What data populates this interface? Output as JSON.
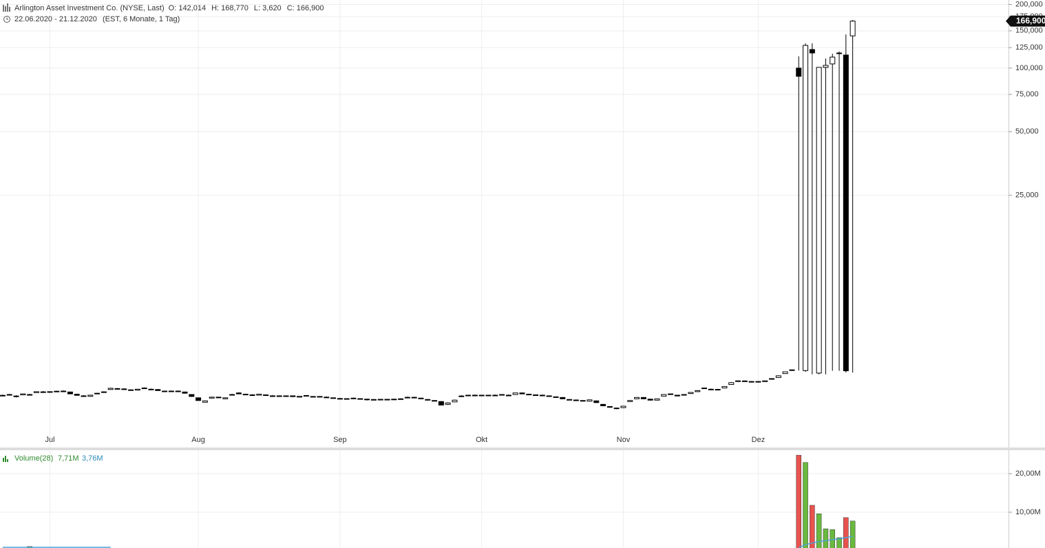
{
  "header": {
    "title": "Arlington Asset Investment Co. (NYSE, Last)",
    "ohlc": [
      "O: 142,014",
      "H: 168,770",
      "L: 3,620",
      "C: 166,900"
    ],
    "range": "22.06.2020 - 21.12.2020",
    "info": "(EST, 6 Monate, 1 Tag)"
  },
  "chart_data": [
    {
      "type": "candlestick",
      "log_scale": true,
      "grid": true,
      "up_color": "#ffffff",
      "down_color": "#000000",
      "ylim": [
        1600,
        210000
      ],
      "yticks": [
        {
          "value": 25000,
          "label": "25,000"
        },
        {
          "value": 50000,
          "label": "50,000"
        },
        {
          "value": 75000,
          "label": "75,000"
        },
        {
          "value": 100000,
          "label": "100,000"
        },
        {
          "value": 125000,
          "label": "125,000"
        },
        {
          "value": 150000,
          "label": "150,000"
        },
        {
          "value": 175000,
          "label": "175,000"
        },
        {
          "value": 200000,
          "label": "200,000"
        }
      ],
      "xlim": [
        -0.4,
        149.1
      ],
      "xticks": [
        {
          "value": 7,
          "label": "Jul"
        },
        {
          "value": 29,
          "label": "Aug"
        },
        {
          "value": 50,
          "label": "Sep"
        },
        {
          "value": 71,
          "label": "Okt"
        },
        {
          "value": 92,
          "label": "Nov"
        },
        {
          "value": 112,
          "label": "Dez"
        }
      ],
      "last_price": {
        "value": 166900,
        "label": "166,900"
      },
      "candles": [
        [
          2820,
          2850,
          2800,
          2825
        ],
        [
          2840,
          2870,
          2820,
          2850
        ],
        [
          2790,
          2830,
          2760,
          2805
        ],
        [
          2840,
          2880,
          2830,
          2870
        ],
        [
          2850,
          2870,
          2830,
          2850
        ],
        [
          2910,
          2950,
          2900,
          2940
        ],
        [
          2930,
          2960,
          2910,
          2935
        ],
        [
          2920,
          2950,
          2910,
          2940
        ],
        [
          2950,
          2970,
          2940,
          2955
        ],
        [
          2960,
          2980,
          2930,
          2955
        ],
        [
          2930,
          2940,
          2860,
          2870
        ],
        [
          2860,
          2870,
          2810,
          2825
        ],
        [
          2810,
          2830,
          2790,
          2805
        ],
        [
          2795,
          2840,
          2780,
          2830
        ],
        [
          2880,
          2900,
          2870,
          2890
        ],
        [
          2920,
          2950,
          2910,
          2935
        ],
        [
          3010,
          3070,
          3000,
          3050
        ],
        [
          3040,
          3060,
          3020,
          3040
        ],
        [
          3030,
          3050,
          3000,
          3015
        ],
        [
          2980,
          3010,
          2970,
          3000
        ],
        [
          2990,
          3030,
          2980,
          3020
        ],
        [
          3060,
          3080,
          3040,
          3060
        ],
        [
          3020,
          3040,
          3000,
          3015
        ],
        [
          3010,
          3020,
          2970,
          2975
        ],
        [
          2950,
          2970,
          2940,
          2960
        ],
        [
          2960,
          2975,
          2945,
          2955
        ],
        [
          2955,
          2980,
          2940,
          2960
        ],
        [
          2930,
          2940,
          2880,
          2890
        ],
        [
          2850,
          2860,
          2780,
          2790
        ],
        [
          2750,
          2760,
          2660,
          2670
        ],
        [
          2620,
          2670,
          2610,
          2660
        ],
        [
          2740,
          2780,
          2730,
          2770
        ],
        [
          2760,
          2780,
          2750,
          2770
        ],
        [
          2720,
          2760,
          2710,
          2750
        ],
        [
          2840,
          2870,
          2820,
          2850
        ],
        [
          2900,
          2920,
          2860,
          2870
        ],
        [
          2860,
          2870,
          2840,
          2850
        ],
        [
          2830,
          2860,
          2820,
          2840
        ],
        [
          2830,
          2870,
          2820,
          2860
        ],
        [
          2840,
          2850,
          2820,
          2830
        ],
        [
          2810,
          2830,
          2790,
          2805
        ],
        [
          2800,
          2820,
          2780,
          2810
        ],
        [
          2810,
          2820,
          2790,
          2800
        ],
        [
          2810,
          2820,
          2780,
          2785
        ],
        [
          2770,
          2800,
          2760,
          2795
        ],
        [
          2820,
          2830,
          2790,
          2800
        ],
        [
          2790,
          2800,
          2780,
          2785
        ],
        [
          2790,
          2800,
          2770,
          2785
        ],
        [
          2770,
          2790,
          2760,
          2765
        ],
        [
          2750,
          2760,
          2730,
          2745
        ],
        [
          2730,
          2745,
          2710,
          2720
        ],
        [
          2720,
          2730,
          2700,
          2725
        ],
        [
          2740,
          2755,
          2730,
          2740
        ],
        [
          2725,
          2735,
          2710,
          2720
        ],
        [
          2690,
          2720,
          2670,
          2710
        ],
        [
          2700,
          2715,
          2690,
          2700
        ],
        [
          2700,
          2710,
          2690,
          2705
        ],
        [
          2705,
          2715,
          2690,
          2700
        ],
        [
          2700,
          2720,
          2690,
          2710
        ],
        [
          2715,
          2735,
          2705,
          2720
        ],
        [
          2750,
          2785,
          2740,
          2765
        ],
        [
          2765,
          2780,
          2750,
          2760
        ],
        [
          2740,
          2750,
          2715,
          2720
        ],
        [
          2700,
          2710,
          2670,
          2680
        ],
        [
          2670,
          2680,
          2650,
          2660
        ],
        [
          2640,
          2650,
          2530,
          2540
        ],
        [
          2560,
          2620,
          2540,
          2600
        ],
        [
          2630,
          2700,
          2620,
          2680
        ],
        [
          2800,
          2830,
          2790,
          2805
        ],
        [
          2820,
          2840,
          2810,
          2830
        ],
        [
          2830,
          2850,
          2810,
          2825
        ],
        [
          2810,
          2840,
          2800,
          2830
        ],
        [
          2830,
          2840,
          2810,
          2825
        ],
        [
          2825,
          2850,
          2810,
          2830
        ],
        [
          2840,
          2860,
          2830,
          2850
        ],
        [
          2830,
          2850,
          2810,
          2825
        ],
        [
          2850,
          2905,
          2840,
          2900
        ],
        [
          2900,
          2910,
          2860,
          2870
        ],
        [
          2860,
          2875,
          2840,
          2850
        ],
        [
          2840,
          2850,
          2820,
          2830
        ],
        [
          2830,
          2850,
          2815,
          2825
        ],
        [
          2810,
          2820,
          2790,
          2800
        ],
        [
          2780,
          2790,
          2760,
          2765
        ],
        [
          2760,
          2770,
          2710,
          2720
        ],
        [
          2700,
          2710,
          2680,
          2685
        ],
        [
          2685,
          2700,
          2670,
          2680
        ],
        [
          2670,
          2680,
          2650,
          2660
        ],
        [
          2650,
          2700,
          2640,
          2690
        ],
        [
          2660,
          2670,
          2600,
          2610
        ],
        [
          2560,
          2570,
          2510,
          2520
        ],
        [
          2500,
          2510,
          2470,
          2480
        ],
        [
          2460,
          2470,
          2430,
          2445
        ],
        [
          2470,
          2520,
          2460,
          2510
        ],
        [
          2640,
          2680,
          2630,
          2670
        ],
        [
          2720,
          2770,
          2710,
          2760
        ],
        [
          2760,
          2770,
          2710,
          2720
        ],
        [
          2710,
          2720,
          2670,
          2680
        ],
        [
          2680,
          2730,
          2670,
          2720
        ],
        [
          2800,
          2860,
          2790,
          2850
        ],
        [
          2860,
          2880,
          2850,
          2870
        ],
        [
          2830,
          2840,
          2795,
          2805
        ],
        [
          2830,
          2860,
          2820,
          2850
        ],
        [
          2880,
          2920,
          2870,
          2915
        ],
        [
          2940,
          2985,
          2930,
          2975
        ],
        [
          3060,
          3070,
          3030,
          3040
        ],
        [
          3020,
          3040,
          3005,
          3015
        ],
        [
          3010,
          3030,
          3000,
          3015
        ],
        [
          3060,
          3120,
          3050,
          3110
        ],
        [
          3180,
          3260,
          3170,
          3245
        ],
        [
          3290,
          3320,
          3280,
          3308
        ],
        [
          3300,
          3320,
          3290,
          3305
        ],
        [
          3260,
          3300,
          3250,
          3285
        ],
        [
          3280,
          3300,
          3270,
          3285
        ],
        [
          3280,
          3320,
          3270,
          3310
        ],
        [
          3370,
          3400,
          3360,
          3390
        ],
        [
          3430,
          3510,
          3420,
          3495
        ],
        [
          3580,
          3660,
          3570,
          3650
        ],
        [
          3720,
          3740,
          3710,
          3730
        ],
        [
          100000,
          113600,
          3700,
          91400
        ],
        [
          3700,
          131000,
          3650,
          128000
        ],
        [
          122400,
          131000,
          3550,
          117900
        ],
        [
          3600,
          101000,
          3550,
          100800
        ],
        [
          100800,
          111000,
          3550,
          103000
        ],
        [
          104600,
          117000,
          3690,
          112700
        ],
        [
          117000,
          119700,
          3690,
          117900
        ],
        [
          115300,
          144300,
          3620,
          3690
        ],
        [
          142014,
          168770,
          3620,
          166900
        ]
      ]
    },
    {
      "type": "bar",
      "grid": true,
      "up_color": "#6ab93f",
      "down_color": "#e8534e",
      "ma_color": "#4aa3d8",
      "legend": [
        "Volume(28)",
        "7,71M",
        "3,76M"
      ],
      "ylim": [
        0,
        25.9
      ],
      "yticks": [
        {
          "value": 10,
          "label": "10,00M"
        },
        {
          "value": 20,
          "label": "20,00M"
        }
      ],
      "values": [
        0.5,
        0.5,
        0.5,
        0.5,
        1.1,
        0.5,
        0.5,
        0.5,
        0.5,
        0.5,
        0.5,
        0.5,
        0.5,
        0.5,
        0.5,
        0.5,
        0.5,
        0.5,
        0.5,
        0.5,
        0.5,
        0.5,
        0.5,
        0.5,
        0.5,
        0.5,
        0.5,
        0.5,
        0.5,
        0.5,
        0.5,
        0.5,
        0.5,
        0.5,
        0.5,
        0.5,
        0.5,
        0.5,
        0.5,
        0.5,
        0.5,
        0.5,
        0.5,
        0.5,
        0.5,
        0.5,
        0.5,
        0.5,
        0.5,
        0.5,
        0.5,
        0.5,
        0.5,
        0.5,
        0.5,
        0.5,
        0.5,
        0.5,
        0.5,
        0.5,
        0.5,
        0.5,
        0.5,
        0.5,
        0.5,
        0.5,
        0.5,
        0.5,
        0.5,
        0.5,
        0.5,
        0.5,
        0.5,
        0.5,
        0.5,
        0.5,
        0.5,
        0.5,
        0.5,
        0.5,
        0.5,
        0.5,
        0.5,
        0.5,
        0.5,
        0.5,
        0.5,
        0.5,
        0.5,
        0.5,
        0.5,
        0.5,
        0.5,
        0.5,
        0.5,
        0.5,
        0.5,
        0.5,
        0.5,
        0.5,
        0.5,
        0.5,
        0.5,
        0.5,
        0.5,
        0.5,
        0.5,
        0.5,
        0.5,
        0.5,
        0.5,
        0.5,
        0.5,
        0.5,
        0.5,
        0.5,
        0.5,
        0.5,
        24.8,
        22.9,
        11.8,
        9.6,
        5.7,
        5.5,
        3.4,
        8.6,
        7.71
      ],
      "ma": [
        0.9,
        0.9,
        0.9,
        0.9,
        0.9,
        0.9,
        0.9,
        0.9,
        0.9,
        0.9,
        0.9,
        0.9,
        0.9,
        0.9,
        0.9,
        0.9,
        0.9,
        null,
        null,
        null,
        null,
        null,
        null,
        null,
        null,
        null,
        null,
        null,
        null,
        null,
        null,
        null,
        null,
        null,
        null,
        null,
        null,
        null,
        null,
        null,
        null,
        null,
        null,
        null,
        null,
        null,
        null,
        null,
        null,
        null,
        null,
        null,
        null,
        null,
        null,
        null,
        null,
        null,
        null,
        null,
        null,
        null,
        null,
        null,
        null,
        null,
        null,
        null,
        null,
        null,
        null,
        null,
        null,
        null,
        null,
        null,
        null,
        null,
        null,
        null,
        null,
        null,
        null,
        null,
        null,
        null,
        null,
        null,
        null,
        null,
        null,
        null,
        null,
        null,
        null,
        null,
        null,
        null,
        null,
        null,
        null,
        null,
        null,
        null,
        null,
        null,
        null,
        null,
        null,
        null,
        null,
        null,
        null,
        null,
        null,
        null,
        null,
        null,
        0.8,
        1.6,
        2.0,
        2.4,
        2.6,
        2.9,
        3.1,
        3.4,
        3.76
      ]
    }
  ]
}
